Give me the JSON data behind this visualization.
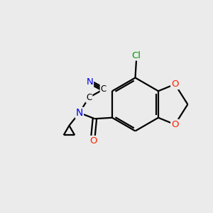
{
  "bg_color": "#ebebeb",
  "atom_colors": {
    "C": "#000000",
    "N": "#0000ee",
    "O": "#ff2200",
    "Cl": "#009900"
  },
  "figsize": [
    3.0,
    3.0
  ],
  "dpi": 100,
  "lw": 1.6
}
